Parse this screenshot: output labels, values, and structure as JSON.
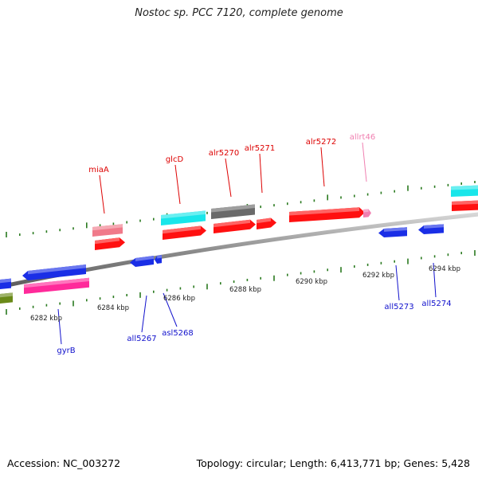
{
  "title": "Nostoc sp. PCC 7120, complete genome",
  "footer": {
    "accession": "Accession: NC_003272",
    "summary": "Topology: circular; Length: 6,413,771 bp; Genes: 5,428"
  },
  "colors": {
    "backbone": "#8c8c8c",
    "tick": "#2a7a1f",
    "forward_label": "#dd0000",
    "reverse_label": "#1010cc",
    "rna_label": "#f07fb0",
    "forward_gene": "#ff1010",
    "reverse_gene": "#1a2ee6",
    "cyan_gene": "#19e6ea",
    "gray_gene": "#6a6a6a",
    "pink_gene": "#f07a8a",
    "magenta_gene": "#ff2a9a",
    "olive_gene": "#6a8a18"
  },
  "scale_labels": [
    "6282 kbp",
    "6284 kbp",
    "6286 kbp",
    "6288 kbp",
    "6290 kbp",
    "6292 kbp",
    "6294 kbp"
  ],
  "gene_labels": {
    "forward": [
      "miaA",
      "glcD",
      "alr5270",
      "alr5271",
      "alr5272",
      "allrt46"
    ],
    "reverse": [
      "gyrB",
      "all5267",
      "asl5268",
      "all5273",
      "all5274"
    ]
  }
}
